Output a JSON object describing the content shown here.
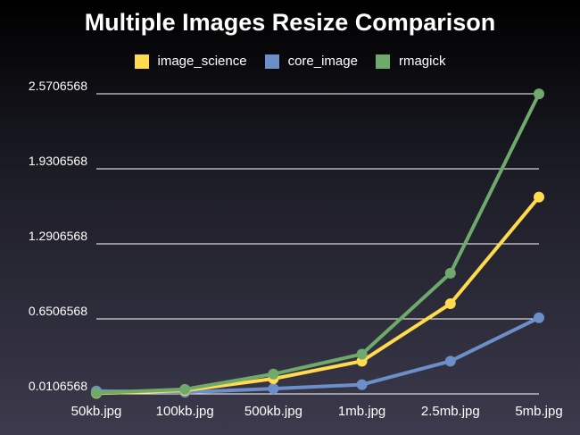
{
  "chart_data": {
    "type": "line",
    "title": "Multiple Images Resize Comparison",
    "categories": [
      "50kb.jpg",
      "100kb.jpg",
      "500kb.jpg",
      "1mb.jpg",
      "2.5mb.jpg",
      "5mb.jpg"
    ],
    "y_ticks": [
      "0.0106568",
      "0.6506568",
      "1.2906568",
      "1.9306568",
      "2.5706568"
    ],
    "y_tick_values": [
      0.0106568,
      0.6506568,
      1.2906568,
      1.9306568,
      2.5706568
    ],
    "ylim": [
      0.0106568,
      2.5706568
    ],
    "grid": true,
    "legend_position": "top",
    "series": [
      {
        "name": "image_science",
        "color": "#ffdb4d",
        "values": [
          0.015,
          0.04,
          0.14,
          0.29,
          0.78,
          1.69
        ]
      },
      {
        "name": "core_image",
        "color": "#6c8ec9",
        "values": [
          0.035,
          0.025,
          0.055,
          0.09,
          0.29,
          0.66
        ]
      },
      {
        "name": "rmagick",
        "color": "#6fa96b",
        "values": [
          0.02,
          0.05,
          0.18,
          0.35,
          1.04,
          2.57
        ]
      }
    ]
  }
}
